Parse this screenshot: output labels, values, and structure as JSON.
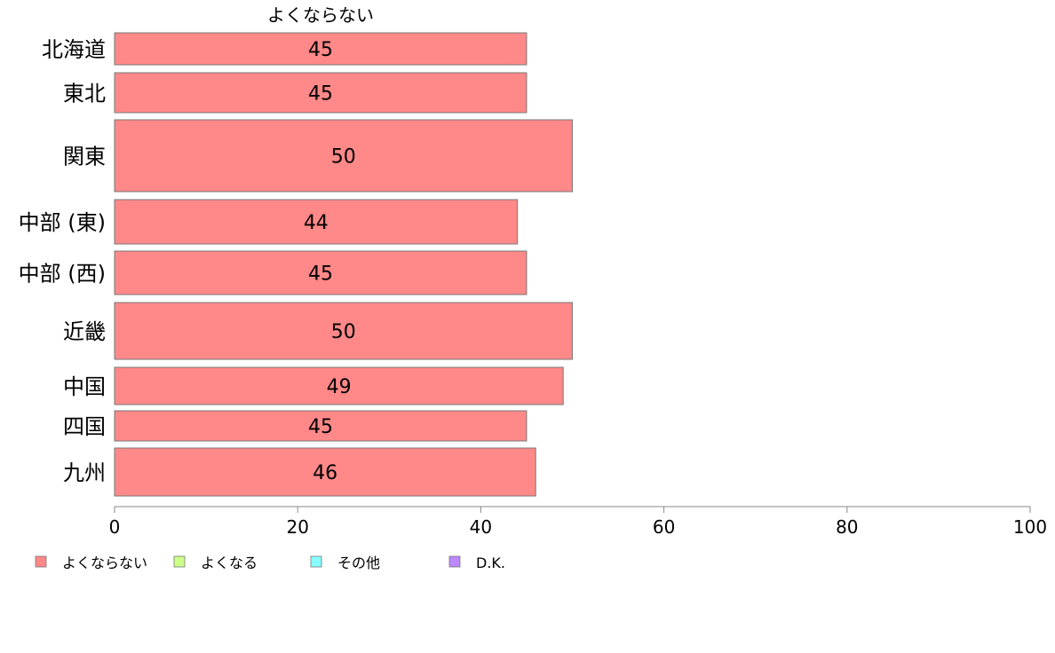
{
  "chart_data": {
    "type": "bar",
    "orientation": "horizontal",
    "series_title": "よくならない",
    "categories": [
      "北海道",
      "東北",
      "関東",
      "中部 (東)",
      "中部 (西)",
      "近畿",
      "中国",
      "四国",
      "九州"
    ],
    "values": [
      45,
      45,
      50,
      44,
      45,
      50,
      49,
      45,
      46
    ],
    "data_labels": [
      "45",
      "45",
      "50",
      "44",
      "45",
      "50",
      "49",
      "45",
      "46"
    ],
    "xlim": [
      0,
      100
    ],
    "xticks": [
      0,
      20,
      40,
      60,
      80,
      100
    ],
    "xtick_labels": [
      "0",
      "20",
      "40",
      "60",
      "80",
      "100"
    ],
    "legend": {
      "placement": "bottom-left",
      "items": [
        {
          "label": "よくならない",
          "color": "#ff8888"
        },
        {
          "label": "よくなる",
          "color": "#ccff88"
        },
        {
          "label": "その他",
          "color": "#88ffff"
        },
        {
          "label": "D.K.",
          "color": "#bb88ff"
        }
      ]
    },
    "bar_color": "#ff8888",
    "bar_stroke": "#777777",
    "grid": false
  }
}
